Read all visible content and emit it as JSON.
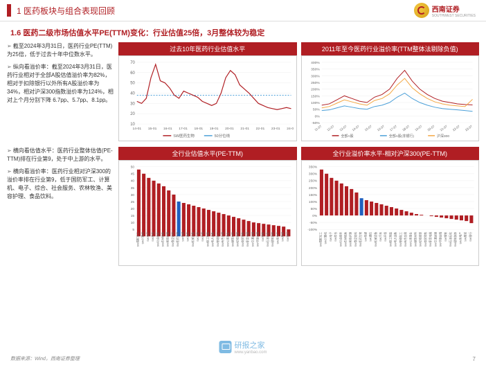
{
  "header": {
    "section": "1 医药板块与组合表现回顾"
  },
  "logo": {
    "brand": "西南证券",
    "sub": "SOUTHWEST SECURITIES"
  },
  "subtitle": "1.6 医药二级市场估值水平PE(TTM)变化：行业估值25倍，3月整体较为稳定",
  "text_left_1": "截至2024年3月31日，医药行业PE(TTM)为25倍，低于过去十年中位数水平。",
  "text_left_2": "纵向看溢价率：截至2024年3月31日，医药行业相对于全部A股估值溢价率为82%，相对于扣除银行以外所有A股溢价率为34%，相对沪深300指数溢价率为124%，相对上个月分别下降 6.7pp、5.7pp、8.1pp。",
  "text_left_3": "横向看估值水平：医药行业整体估值(PE-TTM)排在行业第9，处于中上游的水平。",
  "text_left_4": "横向看溢价率：医药行业相对沪深300的溢价率排在行业第9，低于国防军工、计算机、电子、综合、社会服务、农林牧渔、美容护理、食品饮料。",
  "chart1": {
    "title": "过去10年医药行业估值水平",
    "y_ticks": [
      10,
      20,
      30,
      40,
      50,
      60,
      70
    ],
    "x_labels": [
      "14-01",
      "15-01",
      "16-01",
      "17-01",
      "18-01",
      "19-01",
      "20-01",
      "21-01",
      "22-01",
      "23-01",
      "24-01"
    ],
    "pe_line": {
      "color": "#b01e23",
      "width": 1.2,
      "data": [
        32,
        30,
        35,
        55,
        68,
        52,
        50,
        45,
        38,
        35,
        42,
        40,
        38,
        36,
        32,
        30,
        28,
        30,
        40,
        55,
        62,
        58,
        48,
        44,
        40,
        35,
        30,
        28,
        26,
        25,
        24,
        25,
        26,
        25
      ]
    },
    "median_line": {
      "color": "#4a9fd8",
      "width": 1,
      "dash": "2,2",
      "value": 38
    },
    "legend": [
      {
        "label": "SW医药生物",
        "color": "#b01e23"
      },
      {
        "label": "50分位线",
        "color": "#4a9fd8"
      }
    ]
  },
  "chart2": {
    "title": "2011年至今医药行业溢价率(TTM整体法剔除负值)",
    "y_ticks": [
      "-50%",
      "0%",
      "50%",
      "100%",
      "150%",
      "200%",
      "250%",
      "300%",
      "350%",
      "400%"
    ],
    "x_labels": [
      "11-07",
      "12-07",
      "13-07",
      "14-07",
      "15-07",
      "16-07",
      "17-07",
      "18-07",
      "19-07",
      "20-07",
      "21-07",
      "22-07",
      "23-07"
    ],
    "lines": [
      {
        "color": "#b01e23",
        "label": "全部A股",
        "data": [
          80,
          90,
          120,
          150,
          130,
          110,
          100,
          140,
          160,
          200,
          280,
          340,
          260,
          200,
          160,
          130,
          110,
          100,
          90,
          85,
          82
        ]
      },
      {
        "color": "#4a9fd8",
        "label": "全部A股(非银行)",
        "data": [
          40,
          45,
          60,
          75,
          65,
          55,
          50,
          70,
          80,
          100,
          140,
          170,
          130,
          100,
          80,
          65,
          55,
          50,
          45,
          40,
          34
        ]
      },
      {
        "color": "#f4a742",
        "label": "沪深300",
        "data": [
          60,
          70,
          95,
          120,
          105,
          90,
          80,
          115,
          130,
          165,
          230,
          280,
          210,
          165,
          130,
          105,
          90,
          80,
          75,
          70,
          124
        ]
      }
    ]
  },
  "chart3": {
    "title": "全行业估值水平(PE-TTM)",
    "y_ticks": [
      5,
      10,
      15,
      20,
      25,
      30,
      35,
      40,
      45,
      50
    ],
    "color": "#b01e23",
    "highlight_index": 8,
    "highlight_color": "#2060c0",
    "labels": [
      "SW国防军工",
      "SW计算机",
      "SW电子",
      "SW综合",
      "SW社会服务",
      "SW农林牧渔",
      "SW美容护理",
      "SW食品饮料",
      "SW医药生物",
      "SW传媒",
      "SW通信",
      "SW机械设备",
      "SW汽车",
      "SW环保",
      "SW轻工制造",
      "SW电力设备",
      "SW基础化工",
      "SW有色金属",
      "SW公用事业",
      "SW建筑材料",
      "SW纺织服饰",
      "SW商贸零售",
      "SW家用电器",
      "SW交通运输",
      "SW非银金融",
      "SW钢铁",
      "SW石油石化",
      "SW建筑装饰",
      "SW房地产",
      "SW煤炭",
      "SW银行"
    ],
    "data": [
      48,
      45,
      42,
      40,
      38,
      36,
      33,
      30,
      25,
      24,
      23,
      22,
      21,
      20,
      19,
      18,
      17,
      16,
      15,
      14,
      13,
      12,
      11,
      10,
      9.5,
      9,
      8.5,
      8,
      7.5,
      7,
      5
    ]
  },
  "chart4": {
    "title": "全行业溢价率水平-相对沪深300(PE-TTM)",
    "y_ticks": [
      "-100%",
      "-50%",
      "0%",
      "50%",
      "100%",
      "150%",
      "200%",
      "250%",
      "300%",
      "350%"
    ],
    "color": "#b01e23",
    "highlight_index": 8,
    "highlight_color": "#2060c0",
    "labels": [
      "SW国防军工",
      "SW计算机",
      "SW电子",
      "SW综合",
      "SW社会服务",
      "SW农林牧渔",
      "SW美容护理",
      "SW食品饮料",
      "SW医药生物",
      "SW传媒",
      "SW通信",
      "SW机械设备",
      "SW汽车",
      "SW环保",
      "SW轻工制造",
      "SW电力设备",
      "SW基础化工",
      "SW有色金属",
      "SW公用事业",
      "SW建筑材料",
      "SW纺织服饰",
      "SW商贸零售",
      "SW家用电器",
      "SW交通运输",
      "SW非银金融",
      "SW钢铁",
      "SW石油石化",
      "SW建筑装饰",
      "SW房地产",
      "SW煤炭",
      "SW银行"
    ],
    "data": [
      330,
      300,
      270,
      250,
      230,
      210,
      190,
      165,
      124,
      110,
      100,
      90,
      80,
      70,
      60,
      50,
      40,
      30,
      20,
      10,
      5,
      0,
      -5,
      -10,
      -15,
      -20,
      -25,
      -30,
      -35,
      -40,
      -55
    ]
  },
  "footer": "数据来源：Wind，西南证券整理",
  "page_num": "7",
  "watermark": "研报之家",
  "watermark_url": "www.yanbao.com"
}
